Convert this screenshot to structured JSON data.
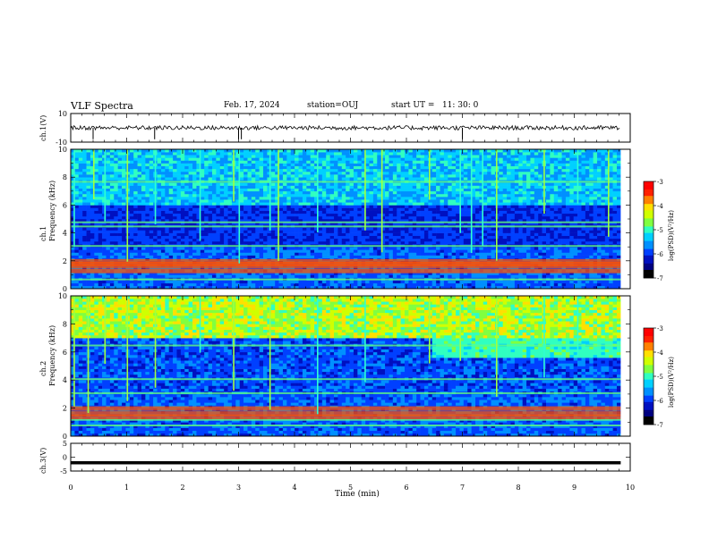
{
  "header": {
    "title": "VLF Spectra",
    "date": "Feb. 17, 2024",
    "station": "station=OUJ",
    "start_ut": "start UT =   11: 30: 0"
  },
  "colorbar": {
    "label": "log(PSD)(V²/Hz)",
    "ticks": [
      "-3",
      "-4",
      "-5",
      "-6",
      "-7"
    ],
    "range": [
      -7,
      -3
    ]
  },
  "chart_data": [
    {
      "type": "line",
      "title": "ch.1(V)",
      "ylabel": "ch.1(V)",
      "ylim": [
        -10,
        10
      ],
      "y_ticks": [
        "10",
        "-10"
      ],
      "x": [
        0,
        1,
        2,
        3,
        4,
        5,
        6,
        7,
        8,
        9,
        9.83
      ],
      "values": [
        0,
        0,
        0,
        0,
        0,
        0,
        0,
        0,
        0,
        0,
        0
      ],
      "color": "#000000"
    },
    {
      "type": "heatmap",
      "title": "ch.1",
      "ylabel": "ch.1\nFrequency (kHz)",
      "ylim": [
        0,
        10
      ],
      "y_ticks": [
        "0",
        "2",
        "4",
        "6",
        "8",
        "10"
      ],
      "xlim": [
        0,
        10
      ],
      "data_xmax": 9.83,
      "bands_khz": [
        0.6,
        1.3,
        1.65,
        1.8,
        2.0,
        3.0,
        4.4,
        4.7,
        7.6
      ],
      "transients_min": [
        0.05,
        0.4,
        0.6,
        1.0,
        1.5,
        2.3,
        2.9,
        3.0,
        3.55,
        3.7,
        4.4,
        5.25,
        5.55,
        6.4,
        6.95,
        7.15,
        7.35,
        7.6,
        8.45,
        9.05,
        9.6
      ]
    },
    {
      "type": "heatmap",
      "title": "ch.2",
      "ylabel": "ch.2\nFrequency (kHz)",
      "ylim": [
        0,
        10
      ],
      "y_ticks": [
        "0",
        "2",
        "4",
        "6",
        "8",
        "10"
      ],
      "xlim": [
        0,
        10
      ],
      "data_xmax": 9.83,
      "bands_khz": [
        0.7,
        1.1,
        1.4,
        1.65,
        2.0,
        3.0,
        4.0,
        6.4
      ],
      "transients_min": [
        0.05,
        0.3,
        0.6,
        1.0,
        1.5,
        2.3,
        2.9,
        3.55,
        4.4,
        5.25,
        6.4,
        6.95,
        7.6,
        8.45,
        9.05
      ]
    },
    {
      "type": "line",
      "title": "ch.3(V)",
      "ylabel": "ch.3(V)",
      "ylim": [
        -5,
        5
      ],
      "y_ticks": [
        "5",
        "0",
        "-5"
      ],
      "x": [
        0,
        9.83
      ],
      "values": [
        -2,
        -2
      ],
      "color": "#000000"
    }
  ],
  "x_axis": {
    "label": "Time (min)",
    "ticks": [
      "0",
      "1",
      "2",
      "3",
      "4",
      "5",
      "6",
      "7",
      "8",
      "9",
      "10"
    ],
    "xlim": [
      0,
      10
    ]
  }
}
